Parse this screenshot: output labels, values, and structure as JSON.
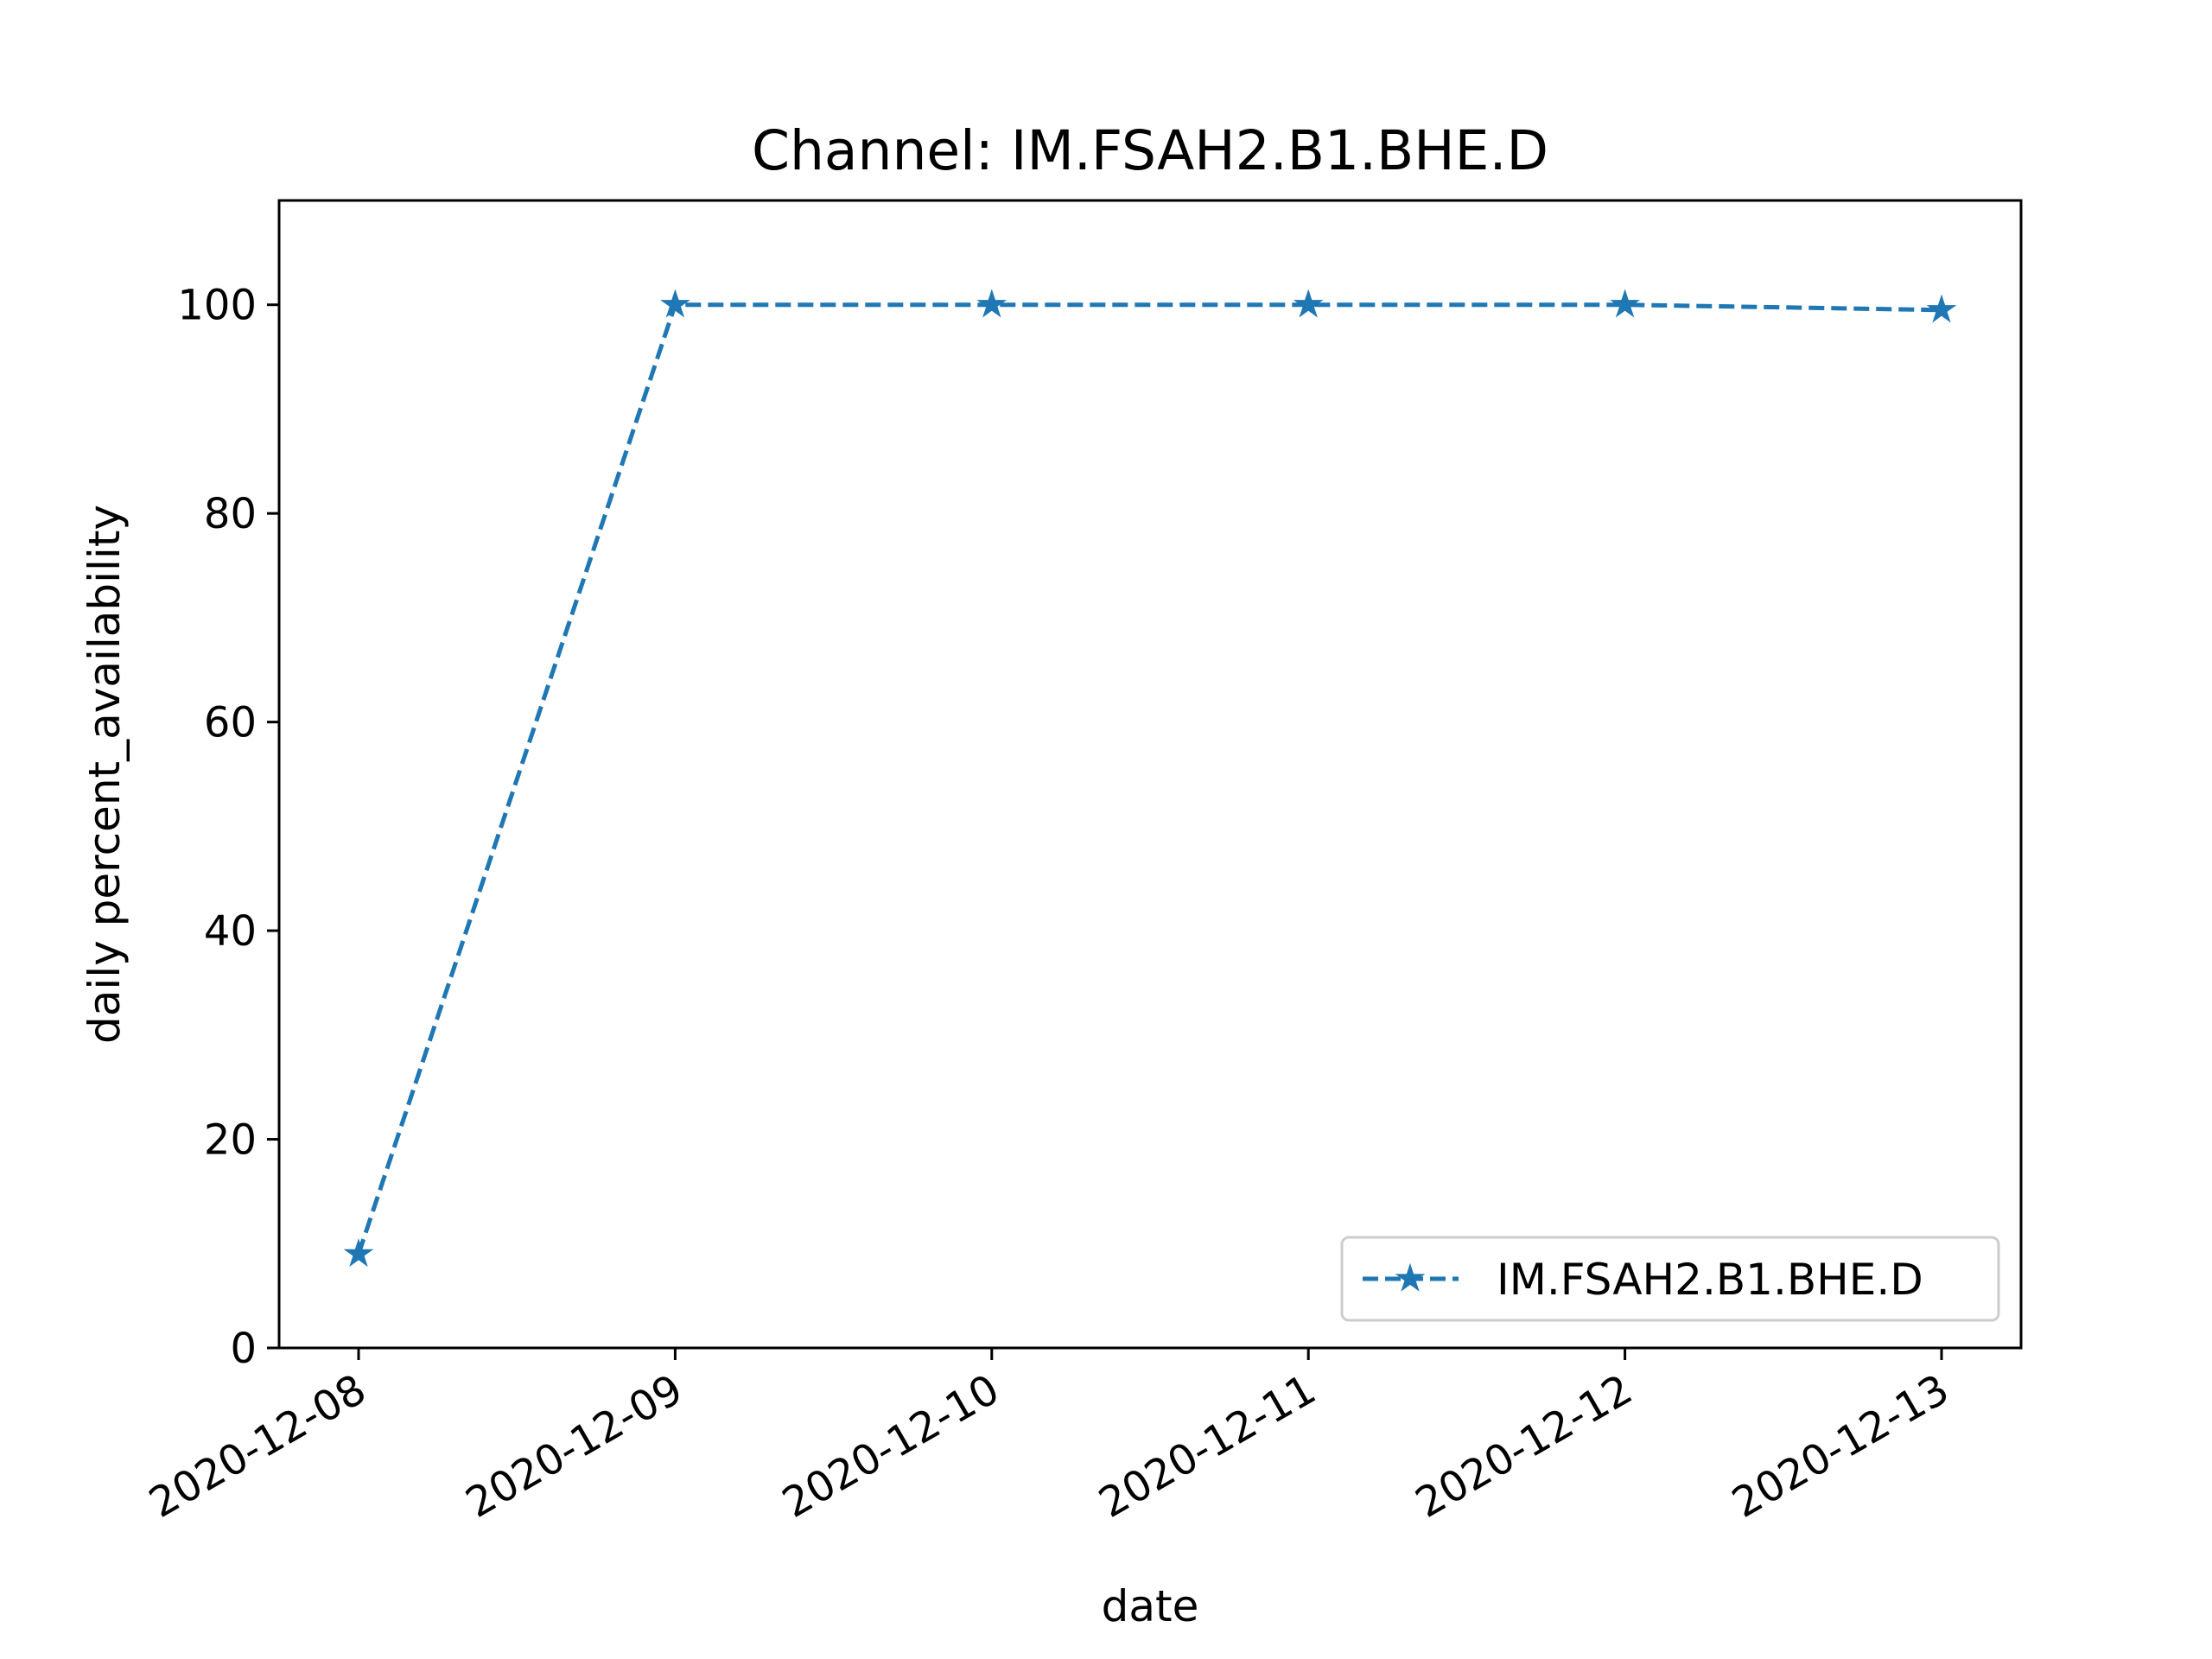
{
  "chart_data": {
    "type": "line",
    "title": "Channel: IM.FSAH2.B1.BHE.D",
    "xlabel": "date",
    "ylabel": "daily percent_availability",
    "categories": [
      "2020-12-08",
      "2020-12-09",
      "2020-12-10",
      "2020-12-11",
      "2020-12-12",
      "2020-12-13"
    ],
    "series": [
      {
        "name": "IM.FSAH2.B1.BHE.D",
        "values": [
          9.0,
          100.0,
          100.0,
          100.0,
          100.0,
          99.5
        ],
        "color": "#1f77b4",
        "line_style": "dashed",
        "marker": "star"
      }
    ],
    "ylim": [
      0,
      110
    ],
    "yticks": [
      0,
      20,
      40,
      60,
      80,
      100
    ],
    "grid": false,
    "legend_position": "lower-right"
  }
}
